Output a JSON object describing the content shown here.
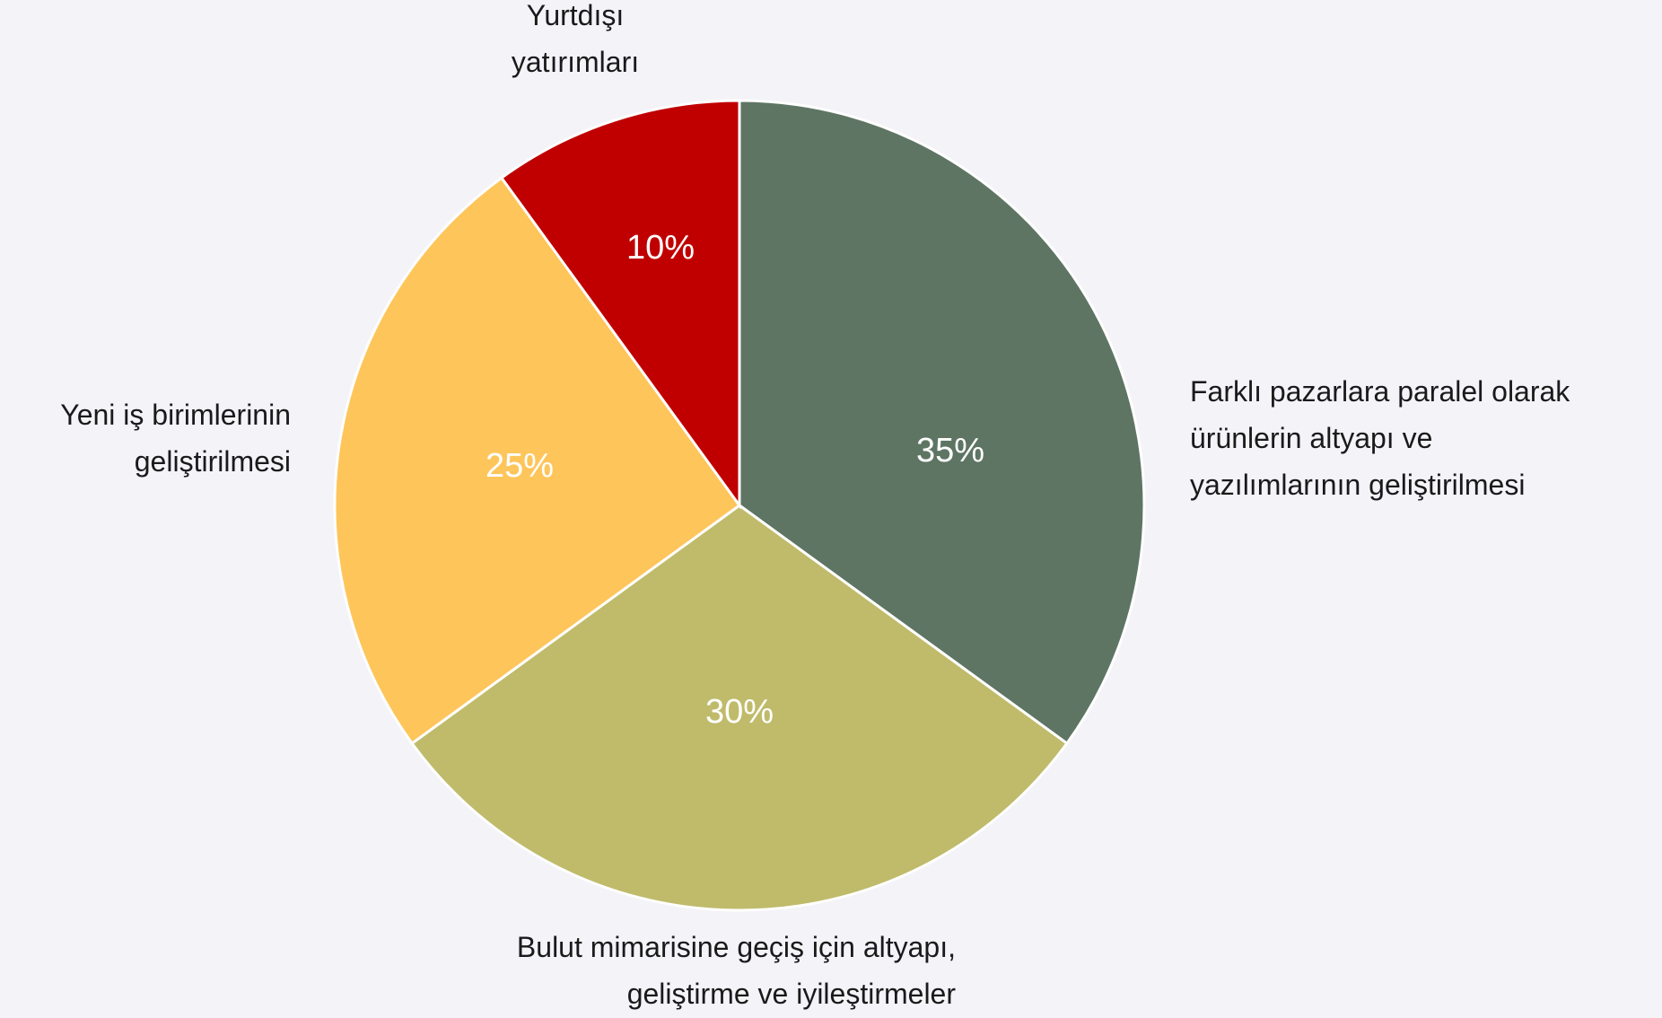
{
  "chart_data": {
    "type": "pie",
    "categories": [
      "Farklı pazarlara paralel olarak\nürünlerin altyapı ve\nyazılımlarının geliştirilmesi",
      "Bulut mimarisine geçiş için altyapı,\ngeliştirme ve iyileştirmeler",
      "Yeni iş birimlerinin\ngeliştirilmesi",
      "Yurtdışı\nyatırımları"
    ],
    "values": [
      35,
      30,
      25,
      10
    ],
    "value_labels": [
      "35%",
      "30%",
      "25%",
      "10%"
    ],
    "colors": [
      "#5e7563",
      "#bfbb6b",
      "#fec55b",
      "#c00000"
    ]
  }
}
